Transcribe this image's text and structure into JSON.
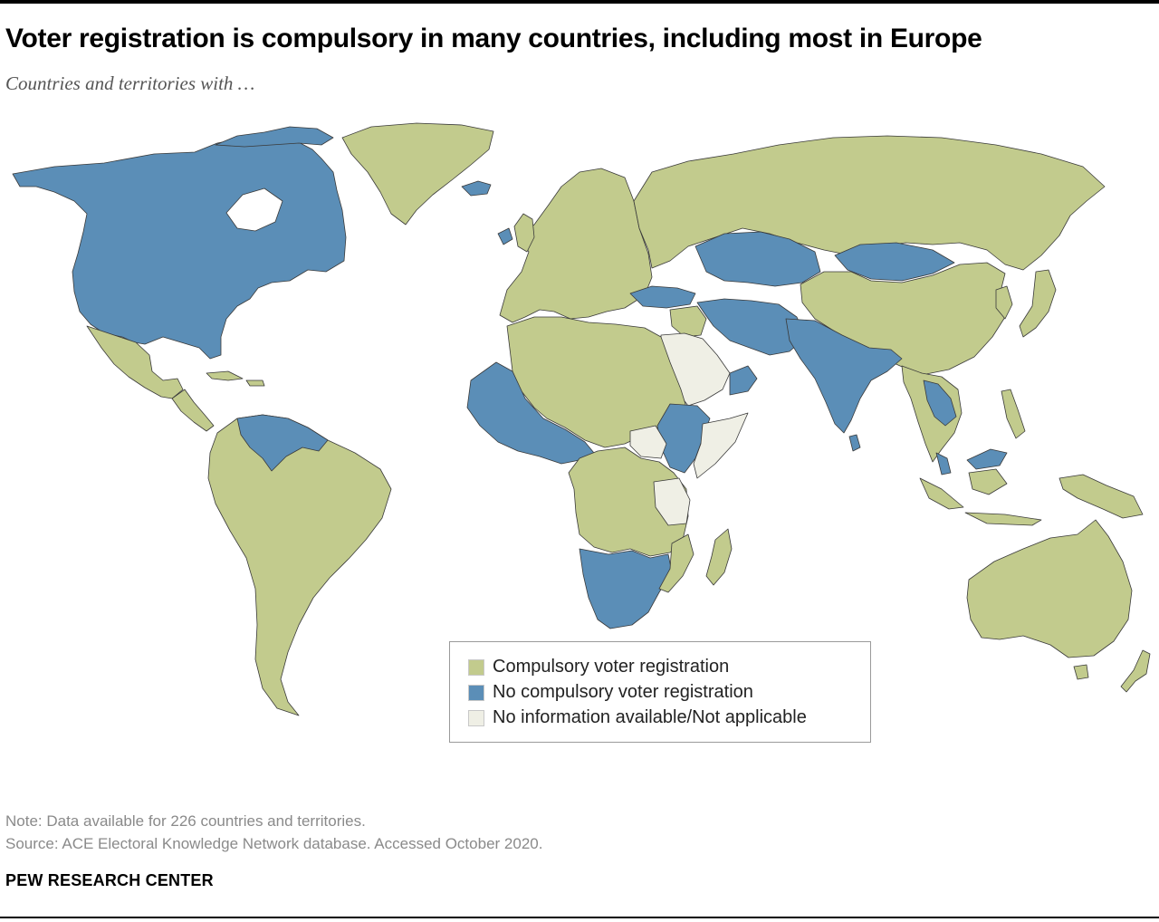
{
  "title": "Voter registration is compulsory in many countries, including most in Europe",
  "subtitle": "Countries and territories with …",
  "colors": {
    "compulsory": "#c2cb8d",
    "no_compulsory": "#5b8eb7",
    "no_info": "#efefe5",
    "border": "#3a3a3a"
  },
  "legend": {
    "items": [
      {
        "key": "compulsory",
        "label": "Compulsory voter registration"
      },
      {
        "key": "no_compulsory",
        "label": "No compulsory voter registration"
      },
      {
        "key": "no_info",
        "label": "No information available/Not applicable"
      }
    ]
  },
  "regions": [
    {
      "name": "North America",
      "category": "no_compulsory"
    },
    {
      "name": "Greenland",
      "category": "compulsory"
    },
    {
      "name": "Mexico",
      "category": "compulsory"
    },
    {
      "name": "Central America",
      "category": "compulsory"
    },
    {
      "name": "South America",
      "category": "compulsory"
    },
    {
      "name": "Venezuela and Guianas",
      "category": "no_compulsory"
    },
    {
      "name": "Europe",
      "category": "compulsory"
    },
    {
      "name": "Russia",
      "category": "compulsory"
    },
    {
      "name": "Kazakhstan",
      "category": "no_compulsory"
    },
    {
      "name": "Mongolia",
      "category": "no_compulsory"
    },
    {
      "name": "China",
      "category": "compulsory"
    },
    {
      "name": "Turkey",
      "category": "no_compulsory"
    },
    {
      "name": "Iran, Afghanistan, Pakistan",
      "category": "no_compulsory"
    },
    {
      "name": "India",
      "category": "no_compulsory"
    },
    {
      "name": "Saudi Arabia",
      "category": "no_info"
    },
    {
      "name": "North Africa",
      "category": "compulsory"
    },
    {
      "name": "West Africa",
      "category": "no_compulsory"
    },
    {
      "name": "Central Africa",
      "category": "compulsory"
    },
    {
      "name": "Southern Africa",
      "category": "no_compulsory"
    },
    {
      "name": "Madagascar",
      "category": "compulsory"
    },
    {
      "name": "Southeast Asia",
      "category": "compulsory"
    },
    {
      "name": "Japan",
      "category": "compulsory"
    },
    {
      "name": "Australia",
      "category": "compulsory"
    },
    {
      "name": "New Zealand",
      "category": "compulsory"
    }
  ],
  "note": "Note: Data available for 226 countries and territories.",
  "source": "Source: ACE Electoral Knowledge Network database. Accessed October 2020.",
  "footer": "PEW RESEARCH CENTER"
}
